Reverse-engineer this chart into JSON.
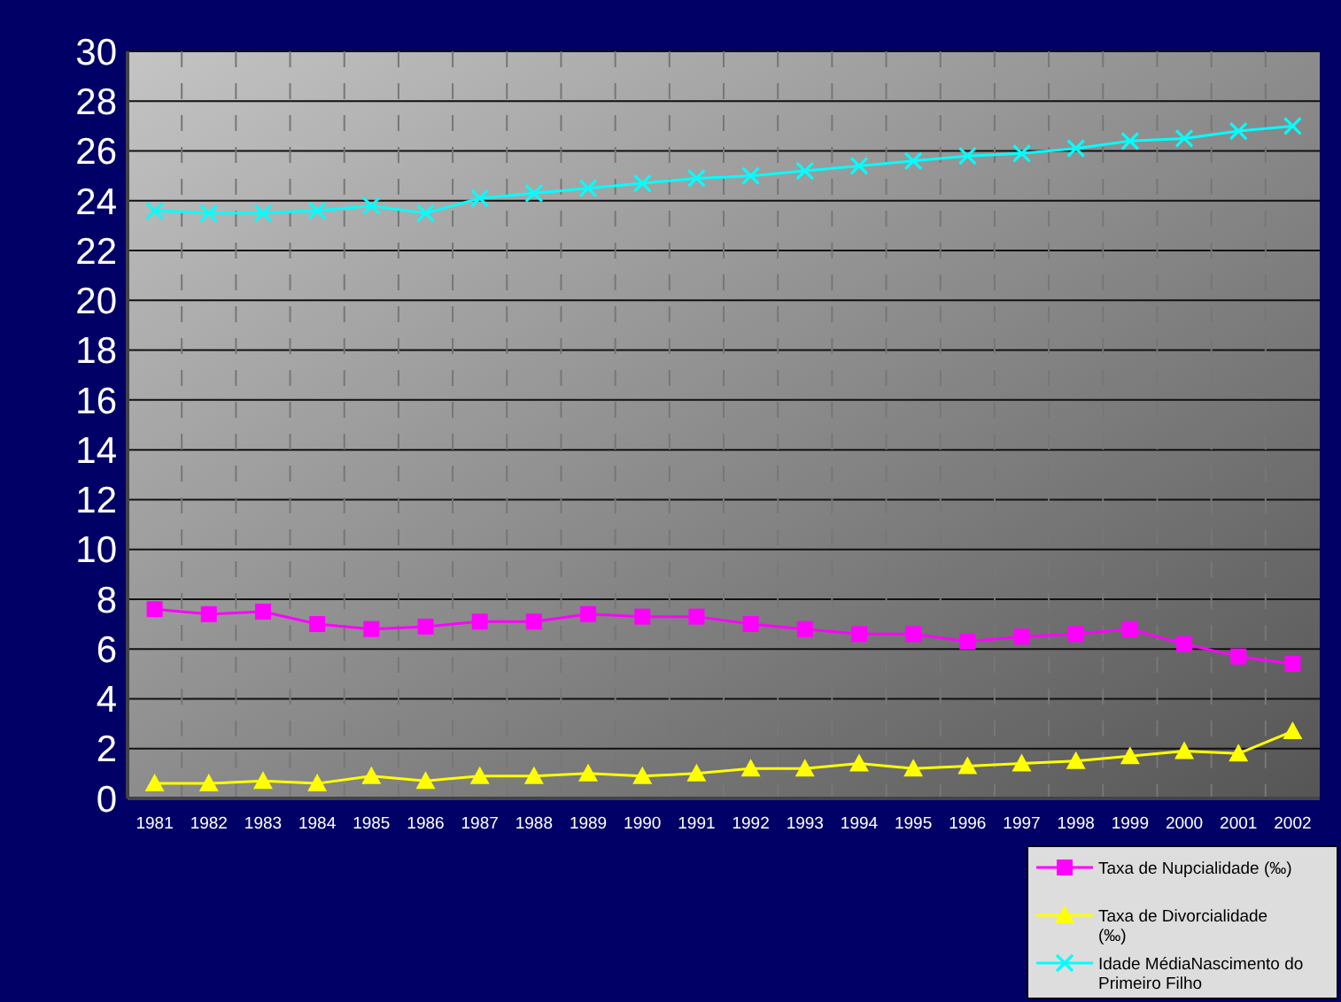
{
  "chart_data": {
    "type": "line",
    "categories": [
      "1981",
      "1982",
      "1983",
      "1984",
      "1985",
      "1986",
      "1987",
      "1988",
      "1989",
      "1990",
      "1991",
      "1992",
      "1993",
      "1994",
      "1995",
      "1996",
      "1997",
      "1998",
      "1999",
      "2000",
      "2001",
      "2002"
    ],
    "series": [
      {
        "name": "Taxa de Nupcialidade (‰)",
        "color": "#ff00ff",
        "marker": "square",
        "values": [
          7.6,
          7.4,
          7.5,
          7.0,
          6.8,
          6.9,
          7.1,
          7.1,
          7.4,
          7.3,
          7.3,
          7.0,
          6.8,
          6.6,
          6.6,
          6.3,
          6.5,
          6.6,
          6.8,
          6.2,
          5.7,
          5.4
        ]
      },
      {
        "name": "Taxa de Divorcialidade (‰)",
        "color": "#ffff00",
        "marker": "triangle",
        "values": [
          0.6,
          0.6,
          0.7,
          0.6,
          0.9,
          0.7,
          0.9,
          0.9,
          1.0,
          0.9,
          1.0,
          1.2,
          1.2,
          1.4,
          1.2,
          1.3,
          1.4,
          1.5,
          1.7,
          1.9,
          1.8,
          2.7
        ]
      },
      {
        "name": "Idade MédiaNascimento do Primeiro Filho",
        "color": "#00ffff",
        "marker": "cross",
        "values": [
          23.6,
          23.5,
          23.5,
          23.6,
          23.8,
          23.5,
          24.1,
          24.3,
          24.5,
          24.7,
          24.9,
          25.0,
          25.2,
          25.4,
          25.6,
          25.8,
          25.9,
          26.1,
          26.4,
          26.5,
          26.8,
          27.0
        ]
      }
    ],
    "ylim": [
      0,
      30
    ],
    "yticks": [
      0,
      2,
      4,
      6,
      8,
      10,
      12,
      14,
      16,
      18,
      20,
      22,
      24,
      26,
      28,
      30
    ],
    "grid": true,
    "legend": "bottom right"
  }
}
